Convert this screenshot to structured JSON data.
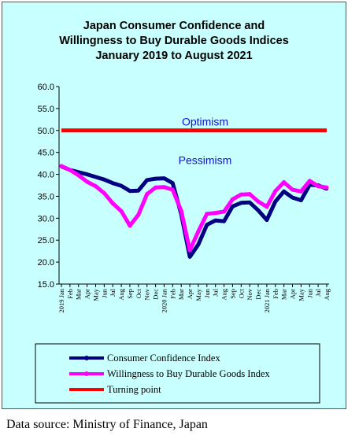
{
  "title": "Japan Consumer Confidence and\nWillingness to Buy Durable Goods Indices\nJanuary 2019 to August 2021",
  "source": "Data source: Ministry of Finance, Japan",
  "chart_data": {
    "type": "line",
    "title": "Japan Consumer Confidence and Willingness to Buy Durable Goods Indices January 2019 to August 2021",
    "xlabel": "",
    "ylabel": "",
    "ylim": [
      15.0,
      60.0
    ],
    "yticks": [
      "15.0",
      "20.0",
      "25.0",
      "30.0",
      "35.0",
      "40.0",
      "45.0",
      "50.0",
      "55.0",
      "60.0"
    ],
    "x": [
      "2019 Jan",
      "Feb",
      "Mar",
      "Apr",
      "May",
      "Jun",
      "Jul",
      "Aug",
      "Sep",
      "Oct",
      "Nov",
      "Dec",
      "2020 Jan",
      "Feb",
      "Mar",
      "Apr",
      "May",
      "Jun",
      "Jul",
      "Aug",
      "Sep",
      "Oct",
      "Nov",
      "Dec",
      "2021 Jan",
      "Feb",
      "Mar",
      "Apr",
      "May",
      "Jun",
      "Jul",
      "Aug"
    ],
    "series": [
      {
        "name": "Consumer Confidence Index",
        "color": "#000080",
        "values": [
          41.8,
          41.0,
          40.5,
          40.0,
          39.4,
          38.8,
          38.0,
          37.4,
          36.2,
          36.3,
          38.7,
          39.0,
          39.1,
          38.0,
          30.9,
          21.2,
          24.0,
          28.5,
          29.5,
          29.3,
          32.7,
          33.5,
          33.6,
          31.8,
          29.6,
          33.8,
          36.1,
          34.7,
          34.1,
          37.6,
          37.5,
          36.7
        ]
      },
      {
        "name": "Willingness to Buy Durable Goods Index",
        "color": "#ff00ff",
        "values": [
          41.9,
          41.0,
          39.8,
          38.3,
          37.3,
          35.7,
          33.4,
          31.6,
          28.3,
          30.8,
          35.5,
          37.0,
          37.1,
          36.5,
          31.7,
          22.7,
          27.0,
          31.0,
          31.2,
          31.5,
          34.3,
          35.4,
          35.5,
          33.8,
          32.6,
          36.2,
          38.2,
          36.5,
          36.1,
          38.5,
          37.3,
          37.0
        ]
      },
      {
        "name": "Turning point",
        "color": "#ff0000",
        "values": [
          50.0,
          50.0,
          50.0,
          50.0,
          50.0,
          50.0,
          50.0,
          50.0,
          50.0,
          50.0,
          50.0,
          50.0,
          50.0,
          50.0,
          50.0,
          50.0,
          50.0,
          50.0,
          50.0,
          50.0,
          50.0,
          50.0,
          50.0,
          50.0,
          50.0,
          50.0,
          50.0,
          50.0,
          50.0,
          50.0,
          50.0,
          50.0
        ]
      }
    ],
    "annotations": [
      {
        "text": "Optimism",
        "y": 52.0
      },
      {
        "text": "Pessimism",
        "y": 43.2
      }
    ],
    "grid": false,
    "legend": "bottom",
    "colors": {
      "plot_background": "#c8ffff",
      "frame_background": "#c8ffff",
      "zone_label": "#1010c8"
    }
  }
}
